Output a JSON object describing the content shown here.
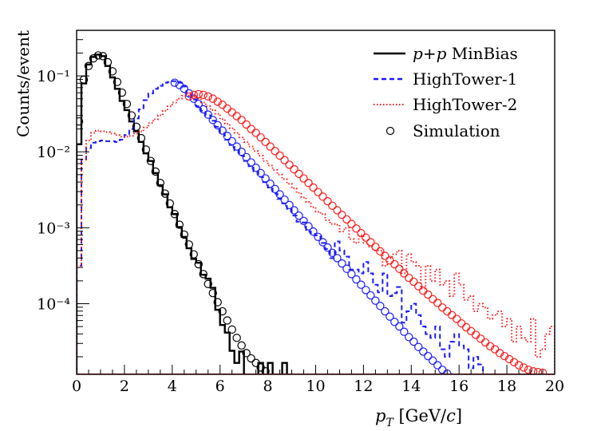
{
  "chart_data": {
    "type": "line",
    "title": "",
    "xlabel": "p_T [GeV/c]",
    "ylabel": "Counts/event",
    "xlim": [
      0,
      20
    ],
    "ylim_log10": [
      -4.93,
      -0.4
    ],
    "yscale": "log",
    "x_ticks": [
      0,
      2,
      4,
      6,
      8,
      10,
      12,
      14,
      16,
      18,
      20
    ],
    "x_tick_labels": [
      "0",
      "2",
      "4",
      "6",
      "8",
      "10",
      "12",
      "14",
      "16",
      "18",
      "20"
    ],
    "y_ticks_exp": [
      -1,
      -2,
      -3,
      -4
    ],
    "y_tick_labels": [
      "10⁻¹",
      "10⁻²",
      "10⁻³",
      "10⁻⁴"
    ],
    "legend_position": "top-right",
    "legend": [
      {
        "label_italic_a": "p",
        "label_mid": "+",
        "label_italic_b": "p",
        "label_rest": " MinBias",
        "style": "solid",
        "color": "#000000"
      },
      {
        "label": "HighTower-1",
        "style": "dashed",
        "color": "#1a1aff"
      },
      {
        "label": "HighTower-2",
        "style": "dotted",
        "color": "#ff1a1a"
      },
      {
        "label": "Simulation",
        "style": "marker",
        "color": "#000000"
      }
    ],
    "series": [
      {
        "name": "p+p MinBias",
        "kind": "histogram",
        "color": "#000000",
        "x": [
          0.1,
          0.3,
          0.5,
          0.7,
          0.9,
          1.1,
          1.3,
          1.5,
          1.7,
          1.9,
          2.1,
          2.3,
          2.5,
          2.7,
          2.9,
          3.1,
          3.3,
          3.5,
          3.7,
          3.9,
          4.1,
          4.3,
          4.5,
          4.7,
          4.9,
          5.1,
          5.3,
          5.5,
          5.7,
          5.9,
          6.1,
          6.3,
          6.5,
          6.7,
          6.9,
          7.1,
          7.3,
          7.5,
          7.7,
          7.9,
          8.1,
          8.3,
          8.5,
          8.7
        ],
        "log10y": [
          -1.9,
          -1.1,
          -0.85,
          -0.75,
          -0.72,
          -0.74,
          -0.87,
          -1.02,
          -1.17,
          -1.33,
          -1.45,
          -1.6,
          -1.73,
          -1.87,
          -2.02,
          -2.12,
          -2.28,
          -2.44,
          -2.56,
          -2.73,
          -2.82,
          -2.99,
          -3.12,
          -3.27,
          -3.41,
          -3.46,
          -3.62,
          -3.67,
          -3.79,
          -4.08,
          -4.28,
          -4.38,
          -4.62,
          -4.78,
          -4.63,
          null,
          null,
          null,
          -4.78,
          null,
          -4.78,
          null,
          null,
          -4.78
        ]
      },
      {
        "name": "HighTower-1",
        "kind": "histogram",
        "color": "#1a1aff",
        "x": [
          0.1,
          0.3,
          0.5,
          0.7,
          0.9,
          1.1,
          1.3,
          1.5,
          1.7,
          1.9,
          2.1,
          2.3,
          2.5,
          2.7,
          2.9,
          3.1,
          3.3,
          3.5,
          3.7,
          3.9,
          4.1,
          4.3,
          4.5,
          4.7,
          4.9,
          5.1,
          5.3,
          5.5,
          5.7,
          5.9,
          6.1,
          6.3,
          6.5,
          6.7,
          6.9,
          7.1,
          7.3,
          7.5,
          7.7,
          7.9,
          8.1,
          8.3,
          8.5,
          8.7,
          8.9,
          9.1,
          9.3,
          9.5,
          9.7,
          9.9,
          10.1,
          10.3,
          10.5,
          10.7,
          10.9,
          11.1,
          11.3,
          11.5,
          11.7,
          11.9,
          12.1,
          12.3,
          12.5,
          12.7,
          12.9,
          13.1,
          13.3,
          13.5,
          13.7,
          13.9,
          14.1,
          14.3,
          14.5,
          14.7,
          14.9,
          15.1,
          15.3,
          15.5,
          15.7,
          15.9,
          16.1,
          16.3,
          16.5,
          16.7,
          16.9
        ],
        "log10y": [
          -3.5,
          -2.1,
          -1.95,
          -1.88,
          -1.86,
          -1.85,
          -1.86,
          -1.86,
          -1.87,
          -1.84,
          -1.78,
          -1.7,
          -1.56,
          -1.44,
          -1.32,
          -1.23,
          -1.17,
          -1.13,
          -1.09,
          -1.08,
          -1.07,
          -1.09,
          -1.14,
          -1.24,
          -1.31,
          -1.4,
          -1.46,
          -1.52,
          -1.59,
          -1.67,
          -1.75,
          -1.84,
          -1.91,
          -1.98,
          -2.05,
          -2.12,
          -2.19,
          -2.26,
          -2.33,
          -2.4,
          -2.47,
          -2.55,
          -2.62,
          -2.68,
          -2.75,
          -2.84,
          -2.92,
          -2.93,
          -3.05,
          -3.08,
          -3.1,
          -3.2,
          -3.28,
          -3.4,
          -3.18,
          -3.3,
          -3.38,
          -3.55,
          -3.55,
          -3.6,
          -3.45,
          -3.6,
          -3.75,
          -3.85,
          -3.6,
          -3.9,
          -3.86,
          -3.78,
          -4.25,
          -4.1,
          -4.0,
          -4.15,
          -4.3,
          -4.4,
          -4.45,
          -4.3,
          -4.6,
          -4.7,
          -4.5,
          -4.4,
          -4.55,
          -4.6,
          -4.85,
          -4.7,
          -4.8
        ]
      },
      {
        "name": "HighTower-2",
        "kind": "histogram",
        "color": "#ff1a1a",
        "x": [
          0.1,
          0.3,
          0.5,
          0.7,
          0.9,
          1.1,
          1.3,
          1.5,
          1.7,
          1.9,
          2.1,
          2.3,
          2.5,
          2.7,
          2.9,
          3.1,
          3.3,
          3.5,
          3.7,
          3.9,
          4.1,
          4.3,
          4.5,
          4.7,
          4.9,
          5.1,
          5.3,
          5.5,
          5.7,
          5.9,
          6.1,
          6.3,
          6.5,
          6.7,
          6.9,
          7.1,
          7.3,
          7.5,
          7.7,
          7.9,
          8.1,
          8.3,
          8.5,
          8.7,
          8.9,
          9.1,
          9.3,
          9.5,
          9.7,
          9.9,
          10.1,
          10.3,
          10.5,
          10.7,
          10.9,
          11.1,
          11.3,
          11.5,
          11.7,
          11.9,
          12.1,
          12.3,
          12.5,
          12.7,
          12.9,
          13.1,
          13.3,
          13.5,
          13.7,
          13.9,
          14.1,
          14.3,
          14.5,
          14.7,
          14.9,
          15.1,
          15.3,
          15.5,
          15.7,
          15.9,
          16.1,
          16.3,
          16.5,
          16.7,
          16.9,
          17.1,
          17.3,
          17.5,
          17.7,
          17.9,
          18.1,
          18.3,
          18.5,
          18.7,
          18.9,
          19.1,
          19.3,
          19.5,
          19.7,
          19.9
        ],
        "log10y": [
          -3.5,
          -2.1,
          -1.85,
          -1.75,
          -1.72,
          -1.73,
          -1.74,
          -1.76,
          -1.78,
          -1.8,
          -1.8,
          -1.79,
          -1.76,
          -1.73,
          -1.68,
          -1.62,
          -1.57,
          -1.52,
          -1.46,
          -1.4,
          -1.35,
          -1.3,
          -1.26,
          -1.26,
          -1.27,
          -1.3,
          -1.35,
          -1.4,
          -1.45,
          -1.5,
          -1.57,
          -1.63,
          -1.69,
          -1.75,
          -1.81,
          -1.87,
          -1.93,
          -1.99,
          -2.05,
          -2.12,
          -2.18,
          -2.24,
          -2.3,
          -2.36,
          -2.42,
          -2.48,
          -2.54,
          -2.6,
          -2.66,
          -2.73,
          -2.79,
          -2.82,
          -2.9,
          -2.95,
          -2.96,
          -3.05,
          -3.0,
          -3.15,
          -3.2,
          -3.1,
          -3.2,
          -3.25,
          -3.3,
          -3.3,
          -3.5,
          -3.4,
          -3.35,
          -3.3,
          -3.6,
          -3.35,
          -3.45,
          -3.5,
          -3.8,
          -3.5,
          -3.7,
          -3.55,
          -3.75,
          -3.7,
          -3.9,
          -3.6,
          -3.75,
          -3.95,
          -3.9,
          -4.1,
          -4.0,
          -4.05,
          -4.2,
          -4.15,
          -4.1,
          -4.3,
          -4.2,
          -4.5,
          -4.3,
          -4.45,
          -4.5,
          -4.2,
          -4.7,
          -4.6,
          -4.4,
          -4.3
        ]
      },
      {
        "name": "Simulation (MinBias)",
        "kind": "markers",
        "color": "#000000",
        "x": [
          0.1,
          0.3,
          0.5,
          0.7,
          0.9,
          1.1,
          1.3,
          1.5,
          1.7,
          1.9,
          2.1,
          2.3,
          2.5,
          2.7,
          2.9,
          3.1,
          3.3,
          3.5,
          3.7,
          3.9,
          4.1,
          4.3,
          4.5,
          4.7,
          4.9,
          5.1,
          5.3,
          5.5,
          5.7,
          5.9,
          6.1,
          6.3,
          6.5,
          6.7,
          6.9,
          7.1,
          7.3,
          7.5,
          7.7,
          7.9
        ],
        "log10y": [
          -1.6,
          -1.05,
          -0.87,
          -0.77,
          -0.73,
          -0.74,
          -0.82,
          -0.94,
          -1.08,
          -1.22,
          -1.37,
          -1.52,
          -1.67,
          -1.82,
          -1.97,
          -2.12,
          -2.26,
          -2.41,
          -2.55,
          -2.68,
          -2.82,
          -2.96,
          -3.09,
          -3.22,
          -3.35,
          -3.48,
          -3.61,
          -3.74,
          -3.86,
          -3.98,
          -4.1,
          -4.22,
          -4.34,
          -4.45,
          -4.55,
          -4.65,
          -4.72,
          -4.78,
          -4.84,
          -4.89
        ]
      },
      {
        "name": "Simulation (HighTower-1)",
        "kind": "markers",
        "color": "#1a1aff",
        "x": [
          4.1,
          4.3,
          4.5,
          4.7,
          4.9,
          5.1,
          5.3,
          5.5,
          5.7,
          5.9,
          6.1,
          6.3,
          6.5,
          6.7,
          6.9,
          7.1,
          7.3,
          7.5,
          7.7,
          7.9,
          8.1,
          8.3,
          8.5,
          8.7,
          8.9,
          9.1,
          9.3,
          9.5,
          9.7,
          9.9,
          10.1,
          10.3,
          10.5,
          10.7,
          10.9,
          11.1,
          11.3,
          11.5,
          11.7,
          11.9,
          12.1,
          12.3,
          12.5,
          12.7,
          12.9,
          13.1,
          13.3,
          13.5,
          13.7,
          13.9,
          14.1,
          14.3,
          14.5,
          14.7,
          14.9,
          15.1,
          15.3,
          15.5,
          15.7,
          15.9,
          16.1,
          16.3,
          16.5,
          16.7,
          16.9,
          17.1
        ],
        "log10y": [
          -1.09,
          -1.12,
          -1.17,
          -1.23,
          -1.3,
          -1.37,
          -1.44,
          -1.51,
          -1.58,
          -1.65,
          -1.72,
          -1.79,
          -1.86,
          -1.93,
          -2.0,
          -2.07,
          -2.14,
          -2.21,
          -2.28,
          -2.35,
          -2.42,
          -2.49,
          -2.56,
          -2.63,
          -2.7,
          -2.77,
          -2.84,
          -2.91,
          -2.98,
          -3.05,
          -3.12,
          -3.19,
          -3.26,
          -3.33,
          -3.4,
          -3.47,
          -3.54,
          -3.61,
          -3.68,
          -3.75,
          -3.82,
          -3.89,
          -3.96,
          -4.03,
          -4.1,
          -4.17,
          -4.24,
          -4.3,
          -4.37,
          -4.44,
          -4.5,
          -4.57,
          -4.63,
          -4.69,
          -4.75,
          -4.81,
          -4.87,
          -4.92,
          -4.97,
          -5.02,
          -5.07,
          -5.12,
          -5.17,
          -5.22,
          -5.27,
          -5.32
        ]
      },
      {
        "name": "Simulation (HighTower-2)",
        "kind": "markers",
        "color": "#ff1a1a",
        "x": [
          4.7,
          4.9,
          5.1,
          5.3,
          5.5,
          5.7,
          5.9,
          6.1,
          6.3,
          6.5,
          6.7,
          6.9,
          7.1,
          7.3,
          7.5,
          7.7,
          7.9,
          8.1,
          8.3,
          8.5,
          8.7,
          8.9,
          9.1,
          9.3,
          9.5,
          9.7,
          9.9,
          10.1,
          10.3,
          10.5,
          10.7,
          10.9,
          11.1,
          11.3,
          11.5,
          11.7,
          11.9,
          12.1,
          12.3,
          12.5,
          12.7,
          12.9,
          13.1,
          13.3,
          13.5,
          13.7,
          13.9,
          14.1,
          14.3,
          14.5,
          14.7,
          14.9,
          15.1,
          15.3,
          15.5,
          15.7,
          15.9,
          16.1,
          16.3,
          16.5,
          16.7,
          16.9,
          17.1,
          17.3,
          17.5,
          17.7,
          17.9,
          18.1,
          18.3,
          18.5,
          18.7,
          18.9,
          19.1,
          19.3,
          19.5
        ],
        "log10y": [
          -1.27,
          -1.25,
          -1.24,
          -1.25,
          -1.27,
          -1.3,
          -1.34,
          -1.38,
          -1.43,
          -1.48,
          -1.53,
          -1.58,
          -1.64,
          -1.7,
          -1.75,
          -1.81,
          -1.87,
          -1.93,
          -1.99,
          -2.05,
          -2.11,
          -2.17,
          -2.23,
          -2.29,
          -2.35,
          -2.41,
          -2.47,
          -2.53,
          -2.59,
          -2.65,
          -2.71,
          -2.77,
          -2.83,
          -2.89,
          -2.95,
          -3.01,
          -3.07,
          -3.13,
          -3.19,
          -3.25,
          -3.31,
          -3.37,
          -3.43,
          -3.48,
          -3.54,
          -3.6,
          -3.66,
          -3.71,
          -3.77,
          -3.83,
          -3.88,
          -3.94,
          -3.99,
          -4.05,
          -4.1,
          -4.15,
          -4.2,
          -4.26,
          -4.31,
          -4.36,
          -4.41,
          -4.46,
          -4.51,
          -4.56,
          -4.6,
          -4.65,
          -4.69,
          -4.73,
          -4.77,
          -4.81,
          -4.84,
          -4.87,
          -4.89,
          -4.9,
          -4.91
        ]
      }
    ]
  }
}
